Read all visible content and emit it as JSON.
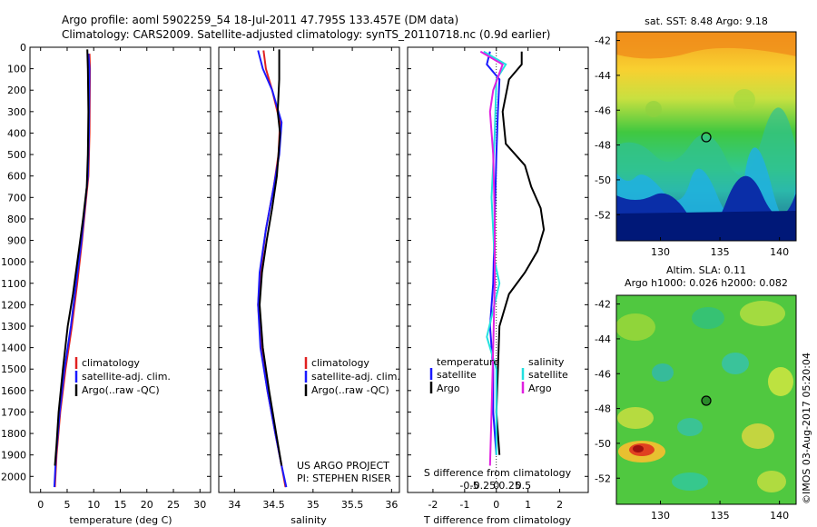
{
  "header": {
    "line1": "Argo profile: aoml 5902259_54 18-Jul-2011 47.795S 133.457E (DM data)",
    "line2": "Climatology: CARS2009. Satellite-adjusted climatology: synTS_20110718.nc (0.9d earlier)"
  },
  "colors": {
    "climatology": "#e02020",
    "satellite": "#1a1aff",
    "argo": "#000000",
    "cyan": "#22e0e0",
    "magenta": "#e020e0"
  },
  "chart_data": [
    {
      "type": "line",
      "xlabel": "temperature (deg C)",
      "ylabel": "",
      "xlim": [
        -2,
        32
      ],
      "ylim": [
        2075,
        0
      ],
      "x_ticks": [
        "0",
        "5",
        "10",
        "15",
        "20",
        "25",
        "30"
      ],
      "y_ticks": [
        "0",
        "100",
        "200",
        "300",
        "400",
        "500",
        "600",
        "700",
        "800",
        "900",
        "1000",
        "1100",
        "1200",
        "1300",
        "1400",
        "1500",
        "1600",
        "1700",
        "1800",
        "1900",
        "2000"
      ],
      "legend": [
        "climatology",
        "satellite-adj. clim.",
        "Argo(..raw -QC)"
      ],
      "series": [
        {
          "name": "climatology",
          "color_key": "climatology",
          "points": [
            [
              9.2,
              30
            ],
            [
              9.3,
              100
            ],
            [
              9.2,
              400
            ],
            [
              9.0,
              600
            ],
            [
              8.6,
              700
            ],
            [
              7.8,
              900
            ],
            [
              6.9,
              1100
            ],
            [
              5.9,
              1300
            ],
            [
              4.7,
              1500
            ],
            [
              3.7,
              1700
            ],
            [
              3.0,
              1900
            ],
            [
              2.7,
              2050
            ]
          ]
        },
        {
          "name": "satellite-adj. clim.",
          "color_key": "satellite",
          "points": [
            [
              9.0,
              30
            ],
            [
              9.2,
              100
            ],
            [
              9.1,
              400
            ],
            [
              8.9,
              600
            ],
            [
              8.5,
              700
            ],
            [
              7.7,
              900
            ],
            [
              6.7,
              1100
            ],
            [
              5.7,
              1300
            ],
            [
              4.5,
              1500
            ],
            [
              3.6,
              1700
            ],
            [
              2.9,
              1900
            ],
            [
              2.6,
              2050
            ]
          ]
        },
        {
          "name": "Argo(..raw -QC)",
          "color_key": "argo",
          "points": [
            [
              8.8,
              10
            ],
            [
              8.9,
              100
            ],
            [
              9.0,
              300
            ],
            [
              8.9,
              500
            ],
            [
              8.7,
              650
            ],
            [
              8.0,
              800
            ],
            [
              7.2,
              950
            ],
            [
              6.1,
              1150
            ],
            [
              5.1,
              1300
            ],
            [
              4.2,
              1500
            ],
            [
              3.4,
              1700
            ],
            [
              3.0,
              1850
            ],
            [
              2.7,
              1950
            ]
          ]
        }
      ]
    },
    {
      "type": "line",
      "xlabel": "salinity",
      "xlim": [
        33.8,
        36.1
      ],
      "ylim": [
        2075,
        0
      ],
      "x_ticks": [
        "34",
        "34.5",
        "35",
        "35.5",
        "36"
      ],
      "legend": [
        "climatology",
        "satellite-adj. clim.",
        "Argo(..raw -QC)"
      ],
      "annotation": [
        "US ARGO PROJECT",
        "PI: STEPHEN RISER"
      ],
      "series": [
        {
          "name": "climatology",
          "color_key": "climatology",
          "points": [
            [
              34.37,
              15
            ],
            [
              34.4,
              100
            ],
            [
              34.48,
              200
            ],
            [
              34.58,
              350
            ],
            [
              34.56,
              500
            ],
            [
              34.5,
              650
            ],
            [
              34.4,
              850
            ],
            [
              34.33,
              1050
            ],
            [
              34.3,
              1200
            ],
            [
              34.34,
              1400
            ],
            [
              34.42,
              1600
            ],
            [
              34.52,
              1800
            ],
            [
              34.6,
              1950
            ],
            [
              34.65,
              2050
            ]
          ]
        },
        {
          "name": "satellite-adj. clim.",
          "color_key": "satellite",
          "points": [
            [
              34.3,
              15
            ],
            [
              34.36,
              100
            ],
            [
              34.48,
              200
            ],
            [
              34.6,
              350
            ],
            [
              34.57,
              500
            ],
            [
              34.5,
              650
            ],
            [
              34.4,
              850
            ],
            [
              34.32,
              1050
            ],
            [
              34.3,
              1200
            ],
            [
              34.33,
              1400
            ],
            [
              34.42,
              1600
            ],
            [
              34.52,
              1800
            ],
            [
              34.6,
              1950
            ],
            [
              34.66,
              2050
            ]
          ]
        },
        {
          "name": "Argo(..raw -QC)",
          "color_key": "argo",
          "points": [
            [
              34.57,
              10
            ],
            [
              34.57,
              150
            ],
            [
              34.55,
              300
            ],
            [
              34.58,
              400
            ],
            [
              34.54,
              600
            ],
            [
              34.48,
              750
            ],
            [
              34.41,
              900
            ],
            [
              34.35,
              1050
            ],
            [
              34.32,
              1200
            ],
            [
              34.36,
              1400
            ],
            [
              34.44,
              1600
            ],
            [
              34.53,
              1800
            ],
            [
              34.6,
              1950
            ]
          ]
        }
      ]
    },
    {
      "type": "line",
      "xlabel": "T difference from climatology",
      "x2label": "S difference from climatology",
      "xlim": [
        -2.8,
        2.9
      ],
      "ylim": [
        2075,
        0
      ],
      "x_ticks": [
        "-2",
        "-1",
        "0",
        "1",
        "2"
      ],
      "x2_ticks": [
        "-0.5",
        "-0.25",
        "0",
        "0.25",
        "0.5"
      ],
      "legend_temperature": [
        "temperature",
        "satellite",
        "Argo"
      ],
      "legend_salinity": [
        "salinity",
        "satellite",
        "Argo"
      ],
      "series": [
        {
          "name": "T satellite",
          "color_key": "satellite",
          "points": [
            [
              -0.2,
              20
            ],
            [
              -0.3,
              80
            ],
            [
              0.1,
              150
            ],
            [
              0.05,
              300
            ],
            [
              0.0,
              500
            ],
            [
              -0.05,
              800
            ],
            [
              -0.1,
              1100
            ],
            [
              -0.2,
              1300
            ],
            [
              -0.1,
              1500
            ],
            [
              -0.1,
              1700
            ],
            [
              0.0,
              1900
            ]
          ]
        },
        {
          "name": "T Argo",
          "color_key": "argo",
          "points": [
            [
              0.8,
              20
            ],
            [
              0.8,
              80
            ],
            [
              0.4,
              150
            ],
            [
              0.2,
              300
            ],
            [
              0.3,
              450
            ],
            [
              0.9,
              550
            ],
            [
              1.1,
              650
            ],
            [
              1.4,
              750
            ],
            [
              1.5,
              850
            ],
            [
              1.3,
              950
            ],
            [
              0.9,
              1050
            ],
            [
              0.4,
              1150
            ],
            [
              0.1,
              1300
            ],
            [
              0.05,
              1500
            ],
            [
              0.0,
              1700
            ],
            [
              0.1,
              1900
            ]
          ]
        },
        {
          "name": "S satellite",
          "color_key": "cyan",
          "points": [
            [
              -0.4,
              20
            ],
            [
              0.3,
              80
            ],
            [
              0.0,
              150
            ],
            [
              -0.05,
              400
            ],
            [
              -0.15,
              700
            ],
            [
              -0.05,
              1000
            ],
            [
              0.1,
              1100
            ],
            [
              -0.3,
              1350
            ],
            [
              0.0,
              1500
            ],
            [
              0.0,
              1900
            ]
          ]
        },
        {
          "name": "S Argo",
          "color_key": "magenta",
          "points": [
            [
              -0.5,
              20
            ],
            [
              0.2,
              80
            ],
            [
              -0.1,
              200
            ],
            [
              -0.2,
              300
            ],
            [
              -0.1,
              500
            ],
            [
              -0.05,
              800
            ],
            [
              -0.05,
              1100
            ],
            [
              -0.1,
              1400
            ],
            [
              -0.15,
              1700
            ],
            [
              -0.2,
              1950
            ]
          ]
        }
      ]
    },
    {
      "type": "heatmap",
      "title": "sat. SST: 8.48 Argo: 9.18",
      "x_ticks": [
        "130",
        "135",
        "140"
      ],
      "y_ticks": [
        "-42",
        "-44",
        "-46",
        "-48",
        "-50",
        "-52"
      ],
      "marker": {
        "lon": 133.457,
        "lat": -47.795
      }
    },
    {
      "type": "heatmap",
      "title_line1": "Altim. SLA: 0.11",
      "title_line2": "Argo h1000: 0.026 h2000: 0.082",
      "x_ticks": [
        "130",
        "135",
        "140"
      ],
      "y_ticks": [
        "-42",
        "-44",
        "-46",
        "-48",
        "-50",
        "-52"
      ],
      "marker": {
        "lon": 133.457,
        "lat": -47.795
      }
    }
  ],
  "side_label": "©IMOS 03-Aug-2017 05:20:04"
}
